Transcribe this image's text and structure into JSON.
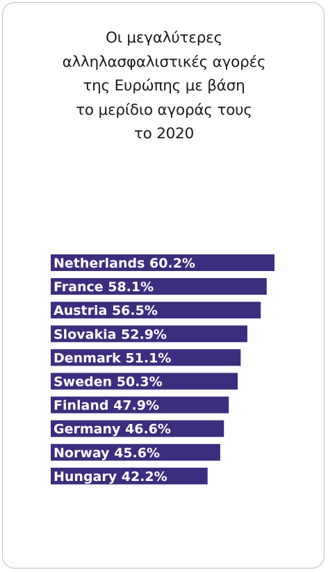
{
  "chart_data": {
    "type": "bar",
    "orientation": "horizontal",
    "title": "Οι μεγαλύτερες\nαλληλασφαλιστικές αγορές\nτης Ευρώπης με βάση\nτο μερίδιο αγοράς τους\nτο 2020",
    "categories": [
      "Netherlands",
      "France",
      "Austria",
      "Slovakia",
      "Denmark",
      "Sweden",
      "Finland",
      "Germany",
      "Norway",
      "Hungary"
    ],
    "values": [
      60.2,
      58.1,
      56.5,
      52.9,
      51.1,
      50.3,
      47.9,
      46.6,
      45.6,
      42.2
    ],
    "labels": [
      "Netherlands 60.2%",
      "France 58.1%",
      "Austria 56.5%",
      "Slovakia 52.9%",
      "Denmark 51.1%",
      "Sweden 50.3%",
      "Finland 47.9%",
      "Germany 46.6%",
      "Norway 45.6%",
      "Hungary 42.2%"
    ],
    "unit": "%",
    "bar_color": "#3c2d7e",
    "label_color": "#ffffff",
    "xlim": [
      0,
      60.2
    ],
    "grid": false,
    "legend": "none"
  }
}
